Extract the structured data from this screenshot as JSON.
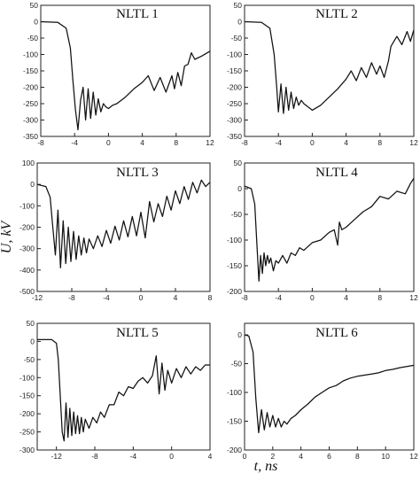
{
  "figure": {
    "ylabel": "U, kV",
    "xlabel": "t, ns"
  },
  "chart_data": [
    {
      "type": "line",
      "title": "NLTL 1",
      "xlim": [
        -8,
        12
      ],
      "ylim": [
        -350,
        50
      ],
      "xticks": [
        -8,
        -4,
        0,
        4,
        8,
        12
      ],
      "yticks": [
        50,
        0,
        -50,
        -100,
        -150,
        -200,
        -250,
        -300,
        -350
      ],
      "x": [
        -8,
        -6,
        -5,
        -4.5,
        -4.2,
        -3.9,
        -3.6,
        -3.3,
        -3.0,
        -2.7,
        -2.4,
        -2.1,
        -1.8,
        -1.5,
        -1.2,
        -0.9,
        -0.6,
        -0.3,
        0,
        0.5,
        1,
        2,
        3,
        4,
        4.7,
        5.4,
        6.1,
        6.8,
        7.5,
        7.8,
        8.2,
        8.6,
        9,
        9.4,
        9.8,
        10.2,
        11,
        12
      ],
      "y": [
        0,
        -2,
        -20,
        -80,
        -180,
        -270,
        -330,
        -240,
        -200,
        -300,
        -205,
        -295,
        -215,
        -285,
        -235,
        -275,
        -250,
        -260,
        -265,
        -255,
        -250,
        -230,
        -205,
        -185,
        -165,
        -210,
        -170,
        -215,
        -165,
        -205,
        -155,
        -195,
        -135,
        -130,
        -95,
        -115,
        -105,
        -90
      ]
    },
    {
      "type": "line",
      "title": "NLTL 2",
      "xlim": [
        -8,
        12
      ],
      "ylim": [
        -350,
        50
      ],
      "xticks": [
        -8,
        -4,
        0,
        4,
        8,
        12
      ],
      "yticks": [
        50,
        0,
        -50,
        -100,
        -150,
        -200,
        -250,
        -300,
        -350
      ],
      "x": [
        -8,
        -6,
        -5,
        -4.5,
        -4.2,
        -4.0,
        -3.7,
        -3.4,
        -3.1,
        -2.8,
        -2.5,
        -2.2,
        -1.9,
        -1.6,
        -1.3,
        -1,
        0,
        1,
        2,
        3,
        4,
        4.6,
        5.2,
        5.8,
        6.4,
        7,
        7.6,
        8,
        8.5,
        9,
        9.3,
        10,
        10.6,
        11.2,
        11.6,
        12
      ],
      "y": [
        0,
        -2,
        -20,
        -100,
        -200,
        -275,
        -190,
        -280,
        -200,
        -270,
        -215,
        -265,
        -230,
        -255,
        -240,
        -250,
        -270,
        -255,
        -230,
        -205,
        -175,
        -150,
        -180,
        -140,
        -170,
        -125,
        -160,
        -135,
        -170,
        -120,
        -75,
        -45,
        -70,
        -30,
        -60,
        -25
      ]
    },
    {
      "type": "line",
      "title": "NLTL 3",
      "xlim": [
        -12,
        8
      ],
      "ylim": [
        -500,
        100
      ],
      "xticks": [
        -12,
        -8,
        -4,
        0,
        4,
        8
      ],
      "yticks": [
        100,
        0,
        -100,
        -200,
        -300,
        -400,
        -500
      ],
      "x": [
        -12,
        -11,
        -10.5,
        -10.2,
        -9.9,
        -9.6,
        -9.3,
        -9.0,
        -8.7,
        -8.4,
        -8.1,
        -7.8,
        -7.5,
        -7.2,
        -6.9,
        -6.6,
        -6.3,
        -6,
        -5.5,
        -5,
        -4.5,
        -4,
        -3.5,
        -3,
        -2.5,
        -2,
        -1.5,
        -1,
        -0.5,
        0,
        0.5,
        1,
        1.5,
        2,
        2.5,
        3,
        3.5,
        4,
        4.5,
        5,
        5.5,
        6,
        6.5,
        7,
        7.5,
        8
      ],
      "y": [
        0,
        -10,
        -60,
        -200,
        -330,
        -120,
        -390,
        -170,
        -370,
        -200,
        -360,
        -220,
        -350,
        -240,
        -330,
        -250,
        -320,
        -255,
        -300,
        -240,
        -290,
        -215,
        -275,
        -195,
        -260,
        -170,
        -245,
        -150,
        -240,
        -130,
        -250,
        -80,
        -175,
        -90,
        -150,
        -55,
        -120,
        -30,
        -90,
        -10,
        -70,
        10,
        -40,
        20,
        -10,
        10
      ]
    },
    {
      "type": "line",
      "title": "NLTL 4",
      "xlim": [
        -8,
        12
      ],
      "ylim": [
        -200,
        50
      ],
      "xticks": [
        -8,
        -4,
        0,
        4,
        8,
        12
      ],
      "yticks": [
        50,
        0,
        -50,
        -100,
        -150,
        -200
      ],
      "x": [
        -8,
        -7.2,
        -6.8,
        -6.5,
        -6.3,
        -6.1,
        -5.9,
        -5.7,
        -5.5,
        -5.3,
        -5.1,
        -4.9,
        -4.6,
        -4.3,
        -4,
        -3.5,
        -3,
        -2.5,
        -2,
        -1.5,
        -1,
        0,
        1,
        2,
        2.6,
        3,
        3.2,
        3.5,
        4,
        5,
        6,
        7,
        8,
        9,
        10,
        11,
        11.6,
        12
      ],
      "y": [
        5,
        0,
        -30,
        -120,
        -180,
        -130,
        -165,
        -125,
        -150,
        -130,
        -145,
        -135,
        -160,
        -140,
        -145,
        -130,
        -145,
        -125,
        -130,
        -115,
        -120,
        -105,
        -100,
        -85,
        -80,
        -110,
        -65,
        -80,
        -75,
        -60,
        -45,
        -35,
        -15,
        -20,
        -5,
        -10,
        10,
        20
      ]
    },
    {
      "type": "line",
      "title": "NLTL 5",
      "xlim": [
        -14,
        4
      ],
      "ylim": [
        -300,
        50
      ],
      "xticks": [
        -12,
        -8,
        -4,
        0,
        4
      ],
      "yticks": [
        50,
        0,
        -50,
        -100,
        -150,
        -200,
        -250,
        -300
      ],
      "x": [
        -14,
        -12.5,
        -12,
        -11.8,
        -11.6,
        -11.4,
        -11.2,
        -11.0,
        -10.8,
        -10.6,
        -10.4,
        -10.2,
        -10.0,
        -9.8,
        -9.6,
        -9.4,
        -9.2,
        -9.0,
        -8.6,
        -8.2,
        -7.8,
        -7.4,
        -7,
        -6.5,
        -6,
        -5.5,
        -5,
        -4.5,
        -4,
        -3.5,
        -3,
        -2.5,
        -2,
        -1.6,
        -1.3,
        -1,
        -0.7,
        -0.4,
        0,
        0.5,
        1,
        1.5,
        2,
        2.5,
        3,
        3.5,
        4
      ],
      "y": [
        5,
        5,
        -5,
        -50,
        -150,
        -250,
        -275,
        -170,
        -265,
        -185,
        -260,
        -195,
        -255,
        -205,
        -255,
        -210,
        -250,
        -215,
        -240,
        -210,
        -225,
        -195,
        -210,
        -175,
        -175,
        -140,
        -150,
        -125,
        -130,
        -110,
        -100,
        -115,
        -95,
        -40,
        -145,
        -60,
        -135,
        -80,
        -115,
        -75,
        -100,
        -70,
        -90,
        -70,
        -80,
        -65,
        -65
      ]
    },
    {
      "type": "line",
      "title": "NLTL 6",
      "xlim": [
        0,
        12
      ],
      "ylim": [
        -200,
        20
      ],
      "xticks": [
        0,
        2,
        4,
        6,
        8,
        10,
        12
      ],
      "yticks": [
        0,
        -50,
        -100,
        -150,
        -200
      ],
      "x": [
        0,
        0.3,
        0.6,
        0.8,
        1.0,
        1.2,
        1.4,
        1.6,
        1.8,
        2.0,
        2.2,
        2.4,
        2.6,
        2.8,
        3.0,
        3.3,
        3.6,
        4,
        4.5,
        5,
        5.5,
        6,
        6.5,
        7,
        7.5,
        8,
        8.5,
        9,
        9.5,
        10,
        10.5,
        11,
        11.5,
        12
      ],
      "y": [
        0,
        -2,
        -30,
        -110,
        -170,
        -130,
        -165,
        -135,
        -160,
        -140,
        -160,
        -145,
        -160,
        -150,
        -155,
        -145,
        -140,
        -130,
        -120,
        -108,
        -100,
        -92,
        -88,
        -80,
        -75,
        -72,
        -70,
        -68,
        -66,
        -62,
        -60,
        -57,
        -55,
        -53
      ]
    }
  ]
}
